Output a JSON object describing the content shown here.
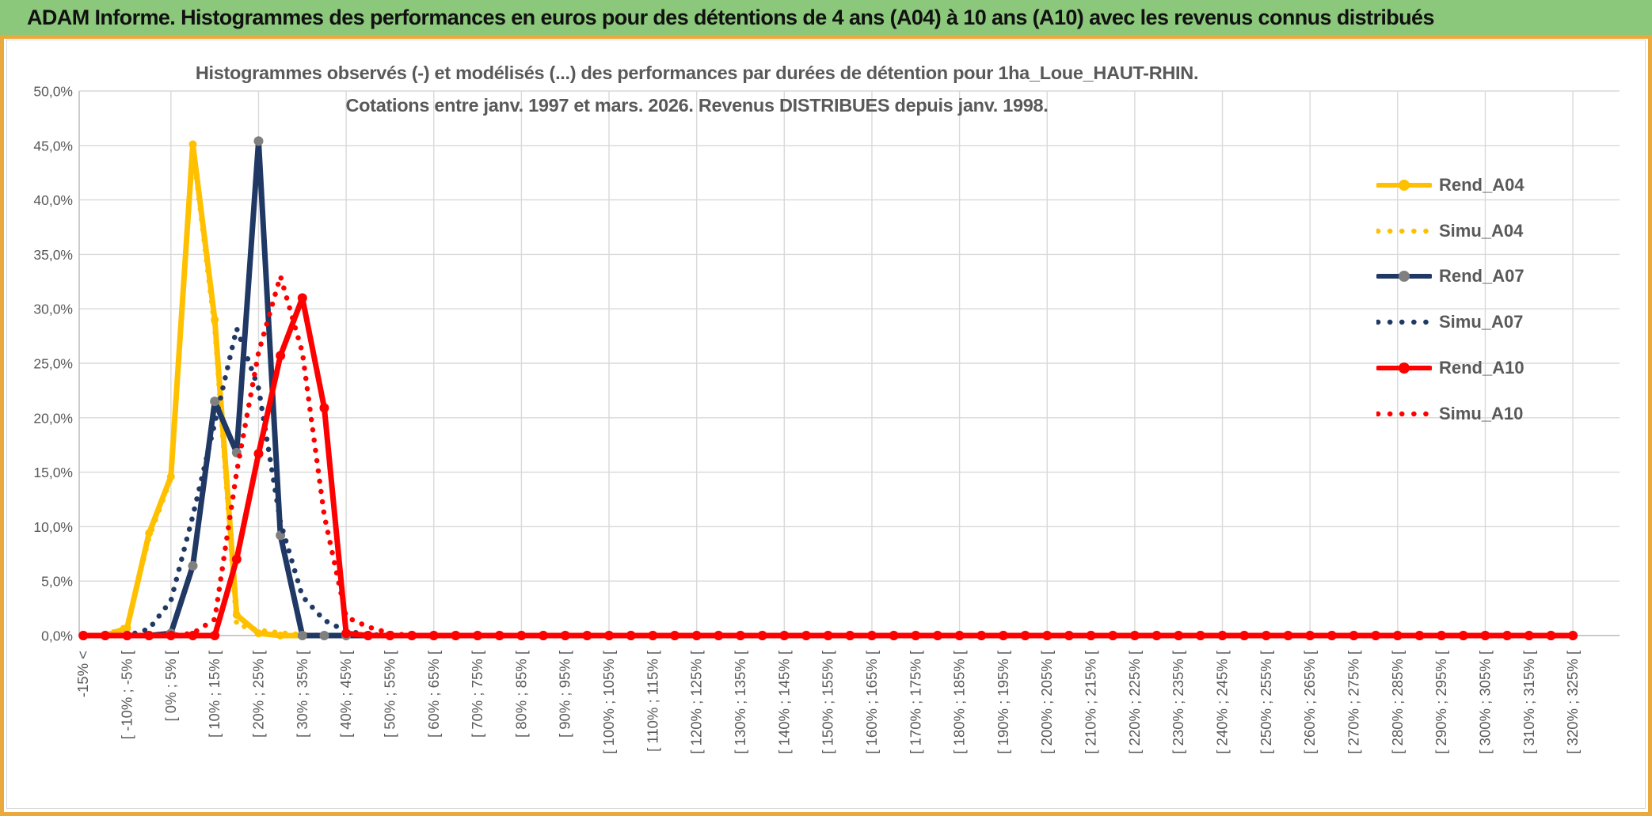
{
  "header": {
    "title": "ADAM Informe. Histogrammes des performances en euros pour des détentions de 4 ans (A04) à 10 ans (A10) avec les revenus connus distribués",
    "bg_color": "#8CC87B",
    "frame_color": "#E9A93C"
  },
  "chart": {
    "title_line1": "Histogrammes observés (-) et modélisés (...) des performances par durées de détention pour 1ha_Loue_HAUT-RHIN.",
    "title_line2": "Cotations entre janv. 1997 et mars. 2026. Revenus DISTRIBUES depuis janv. 1998.",
    "text_color": "#595959",
    "gridline_color": "#D9D9D9",
    "axis_line_color": "#BFBFBF"
  },
  "chart_data": {
    "type": "line",
    "bin_count": 69,
    "x_tick_every": 2,
    "x_tick_labels": [
      "-15% <",
      "[ -10% ; -5% [",
      "[ 0% ; 5% [",
      "[ 10% ; 15% [",
      "[ 20% ; 25% [",
      "[ 30% ; 35% [",
      "[ 40% ; 45% [",
      "[ 50% ; 55% [",
      "[ 60% ; 65% [",
      "[ 70% ; 75% [",
      "[ 80% ; 85% [",
      "[ 90% ; 95% [",
      "[ 100% ; 105% [",
      "[ 110% ; 115% [",
      "[ 120% ; 125% [",
      "[ 130% ; 135% [",
      "[ 140% ; 145% [",
      "[ 150% ; 155% [",
      "[ 160% ; 165% [",
      "[ 170% ; 175% [",
      "[ 180% ; 185% [",
      "[ 190% ; 195% [",
      "[ 200% ; 205% [",
      "[ 210% ; 215% [",
      "[ 220% ; 225% [",
      "[ 230% ; 235% [",
      "[ 240% ; 245% [",
      "[ 250% ; 255% [",
      "[ 260% ; 265% [",
      "[ 270% ; 275% [",
      "[ 280% ; 285% [",
      "[ 290% ; 295% [",
      "[ 300% ; 305% [",
      "[ 310% ; 315% [",
      "[ 320% ; 325% ["
    ],
    "y_tick_labels": [
      "50,0%",
      "45,0%",
      "40,0%",
      "35,0%",
      "30,0%",
      "25,0%",
      "20,0%",
      "15,0%",
      "10,0%",
      "5,0%",
      "0,0%"
    ],
    "ylim": [
      0,
      50
    ],
    "grid": "both",
    "legend_position": "right-inside",
    "series": [
      {
        "name": "Rend_A04",
        "style": "solid",
        "color": "#FFC000",
        "marker_color": "#FFC000",
        "values": {
          "2": 0.7,
          "3": 9.4,
          "4": 14.6,
          "5": 45.1,
          "6": 29.0,
          "7": 1.9,
          "8": 0.2
        }
      },
      {
        "name": "Simu_A04",
        "style": "dotted",
        "color": "#FFC000",
        "values": {
          "2": 0.9,
          "3": 9.0,
          "4": 14.4,
          "5": 44.7,
          "6": 28.2,
          "7": 1.0,
          "8": 0.5,
          "9": 0.25,
          "10": 0.1
        }
      },
      {
        "name": "Rend_A07",
        "style": "solid",
        "color": "#1F3864",
        "marker_color": "#808080",
        "values": {
          "4": 0.2,
          "5": 6.4,
          "6": 21.5,
          "7": 16.8,
          "8": 45.4,
          "9": 9.2
        }
      },
      {
        "name": "Simu_A07",
        "style": "dotted",
        "color": "#1F3864",
        "values": {
          "3": 0.6,
          "4": 3.2,
          "5": 11.0,
          "6": 19.5,
          "7": 28.2,
          "8": 22.7,
          "9": 10.4,
          "10": 3.6,
          "11": 1.4,
          "12": 0.4,
          "13": 0.1
        }
      },
      {
        "name": "Rend_A10",
        "style": "solid",
        "color": "#FF0000",
        "marker_color": "#FF0000",
        "values": {
          "7": 7.0,
          "8": 16.7,
          "9": 25.7,
          "10": 31.0,
          "11": 20.9,
          "12": 0.2
        }
      },
      {
        "name": "Simu_A10",
        "style": "dotted",
        "color": "#FF0000",
        "values": {
          "5": 0.2,
          "6": 1.5,
          "7": 15.0,
          "8": 26.0,
          "9": 33.0,
          "10": 26.0,
          "11": 11.0,
          "12": 1.7,
          "13": 0.8,
          "14": 0.2
        }
      }
    ]
  }
}
